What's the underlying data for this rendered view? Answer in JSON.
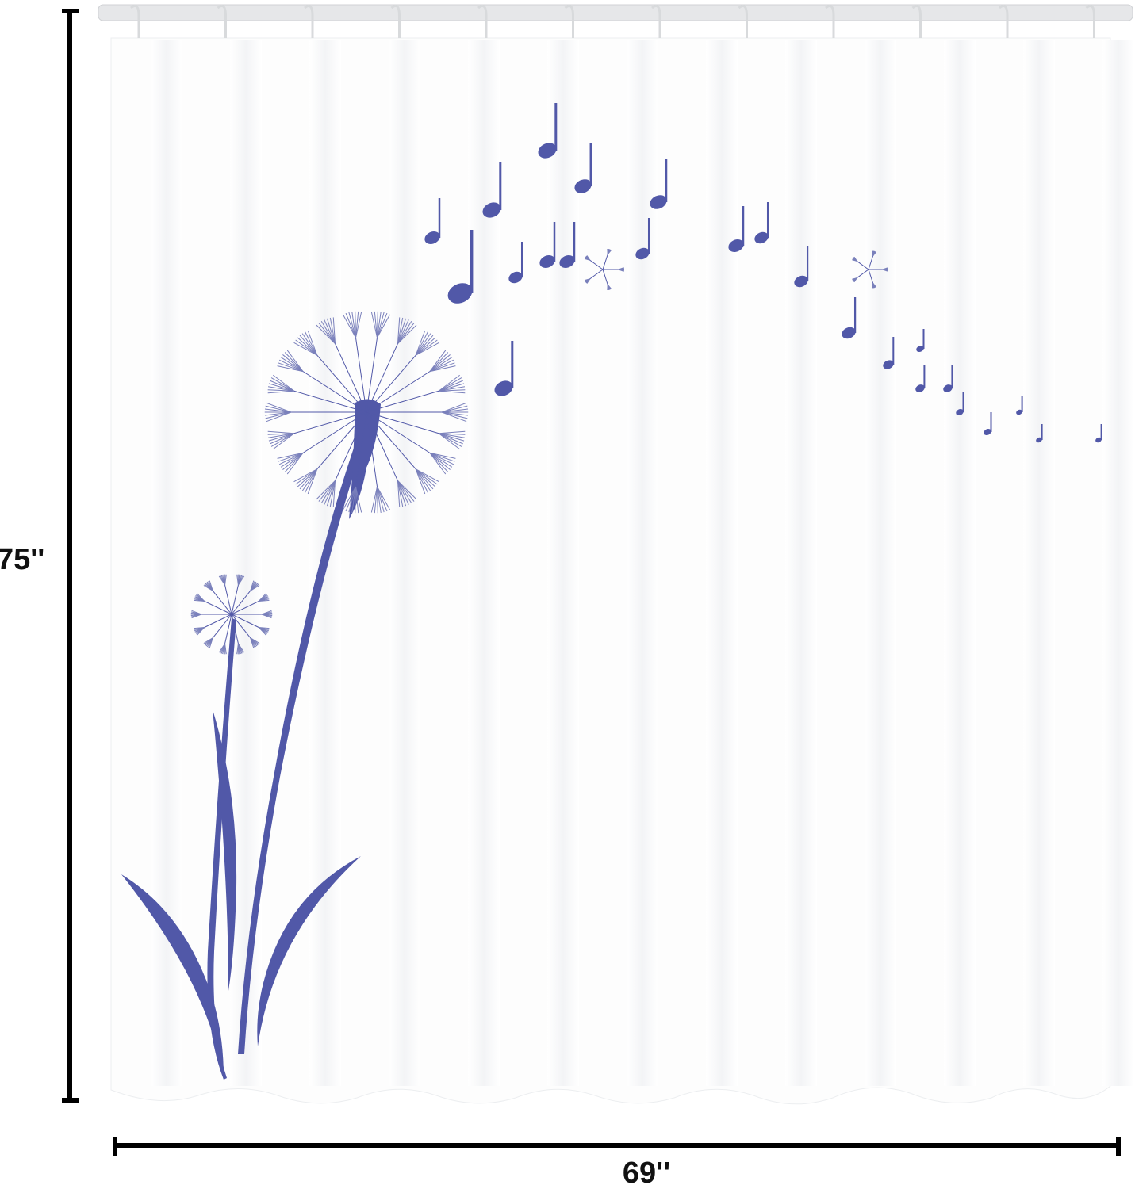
{
  "dimensions": {
    "height": "75''",
    "width": "69''"
  }
}
